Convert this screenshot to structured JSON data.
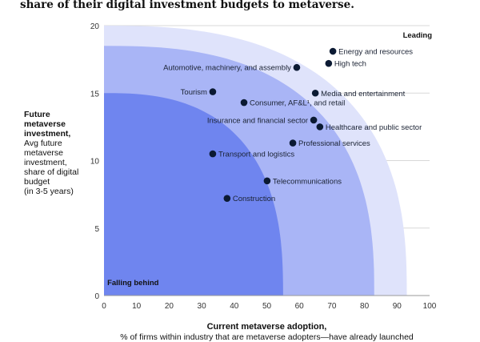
{
  "title": "share of their digital investment budgets to metaverse.",
  "chart_data": {
    "type": "scatter",
    "xlabel": "Current metaverse adoption,",
    "xlabel_sub": "% of firms within industry that are metaverse adopters—have already launched",
    "ylabel": "Future metaverse investment,",
    "ylabel_sub": [
      "Avg future",
      "metaverse",
      "investment,",
      "share of digital",
      "budget",
      "(in 3-5 years)"
    ],
    "xlim": [
      0,
      100
    ],
    "ylim": [
      0,
      20
    ],
    "xticks": [
      0,
      10,
      20,
      30,
      40,
      50,
      60,
      70,
      80,
      90,
      100
    ],
    "yticks": [
      0,
      5,
      10,
      15,
      20
    ],
    "grid": true,
    "zones": [
      {
        "label": "Leading",
        "x_end": 93,
        "y_top": 20,
        "color": "#dfe3fb"
      },
      {
        "x_end": 83,
        "y_top": 18.5,
        "color": "#a9b5f6"
      },
      {
        "label": "Falling behind",
        "x_end": 55,
        "y_top": 15,
        "color": "#6f85ef"
      }
    ],
    "point_color": "#0b1a33",
    "points": [
      {
        "label": "Energy and resources",
        "x": 70.3,
        "y": 18.1,
        "side": "right"
      },
      {
        "label": "High tech",
        "x": 69,
        "y": 17.2,
        "side": "right"
      },
      {
        "label": "Automotive, machinery, and assembly",
        "x": 59.2,
        "y": 16.9,
        "side": "left"
      },
      {
        "label": "Tourism",
        "x": 33.4,
        "y": 15.1,
        "side": "left"
      },
      {
        "label": "Media and entertainment",
        "x": 64.9,
        "y": 15.0,
        "side": "right"
      },
      {
        "label": "Consumer, AF&L¹, and retail",
        "x": 43,
        "y": 14.3,
        "side": "right"
      },
      {
        "label": "Insurance and financial sector",
        "x": 64.4,
        "y": 13.0,
        "side": "left"
      },
      {
        "label": "Healthcare and public sector",
        "x": 66.3,
        "y": 12.5,
        "side": "right"
      },
      {
        "label": "Professional services",
        "x": 58,
        "y": 11.3,
        "side": "right"
      },
      {
        "label": "Transport and logistics",
        "x": 33.4,
        "y": 10.5,
        "side": "right"
      },
      {
        "label": "Telecommunications",
        "x": 50.1,
        "y": 8.5,
        "side": "right"
      },
      {
        "label": "Construction",
        "x": 37.8,
        "y": 7.2,
        "side": "right"
      }
    ]
  }
}
